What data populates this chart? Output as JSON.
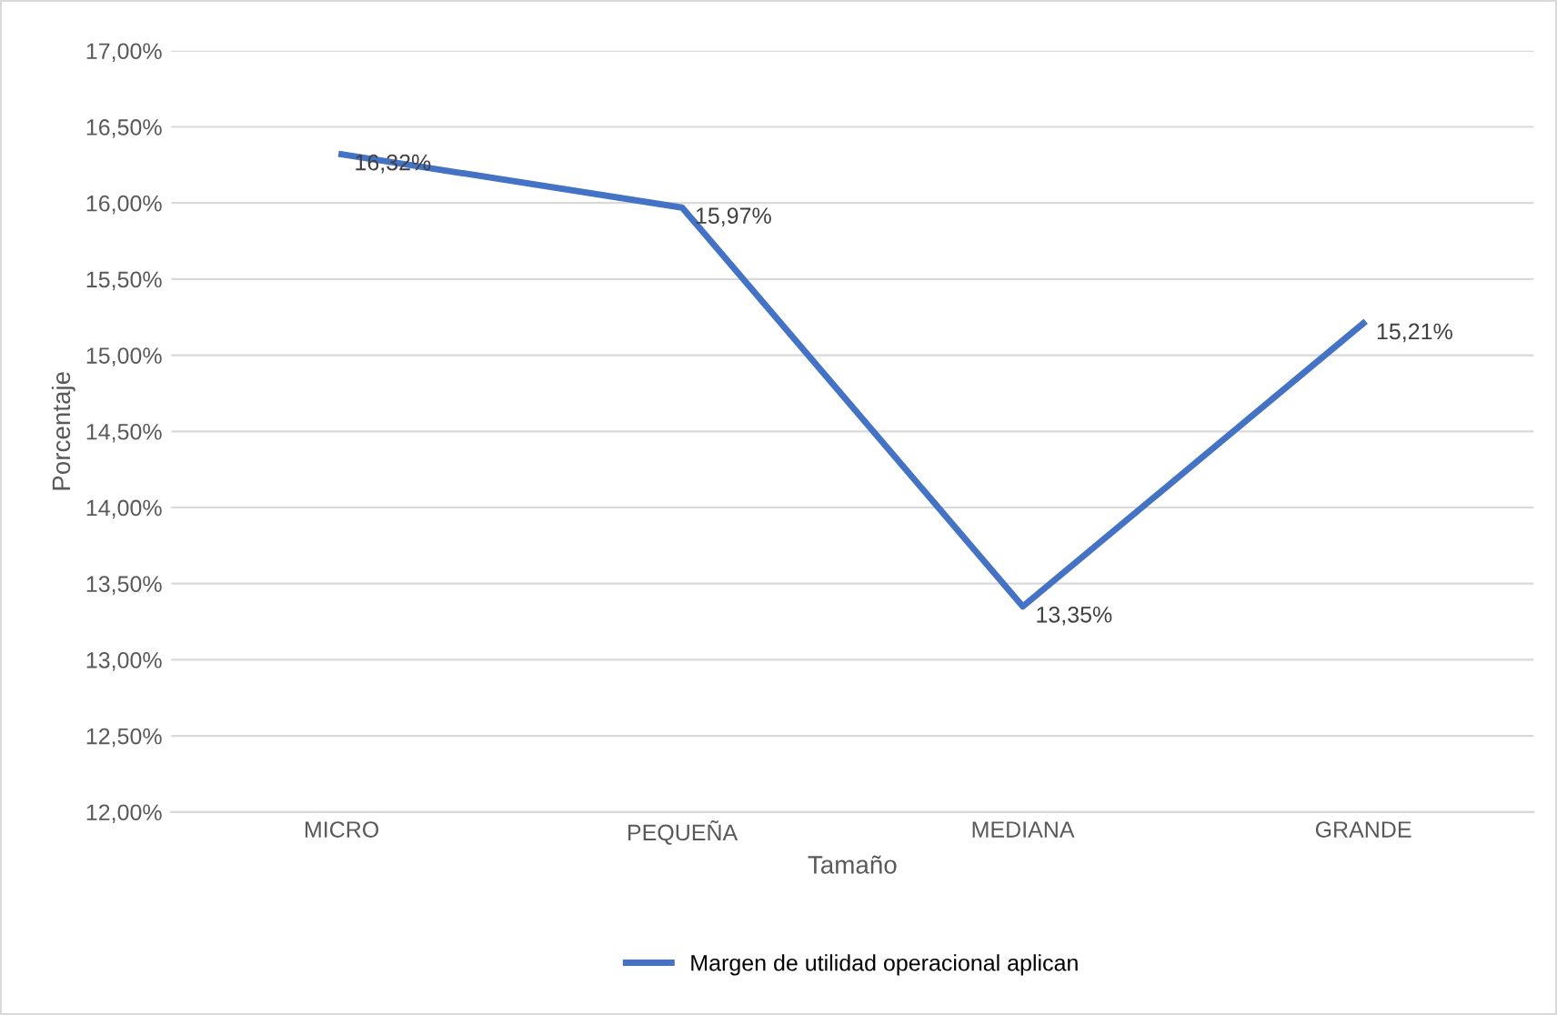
{
  "chart_data": {
    "type": "line",
    "xlabel": "Tamaño",
    "ylabel": "Porcentaje",
    "categories": [
      "MICRO",
      "PEQUEÑA",
      "MEDIANA",
      "GRANDE"
    ],
    "series": [
      {
        "name": "Margen de utilidad operacional aplican",
        "color": "#4472c4",
        "values": [
          16.32,
          15.97,
          13.35,
          15.21
        ],
        "value_labels": [
          "16,32%",
          "15,97%",
          "13,35%",
          "15,21%"
        ]
      }
    ],
    "ylim": [
      12,
      17
    ],
    "yticks": [
      {
        "value": 12,
        "label": "12,00%"
      },
      {
        "value": 12.5,
        "label": "12,50%"
      },
      {
        "value": 13,
        "label": "13,00%"
      },
      {
        "value": 13.5,
        "label": "13,50%"
      },
      {
        "value": 14,
        "label": "14,00%"
      },
      {
        "value": 14.5,
        "label": "14,50%"
      },
      {
        "value": 15,
        "label": "15,00%"
      },
      {
        "value": 15.5,
        "label": "15,50%"
      },
      {
        "value": 16,
        "label": "16,00%"
      },
      {
        "value": 16.5,
        "label": "16,50%"
      },
      {
        "value": 17,
        "label": "17,00%"
      }
    ],
    "grid": "y",
    "legend": "bottom",
    "marker": "none",
    "line_style": "solid"
  }
}
